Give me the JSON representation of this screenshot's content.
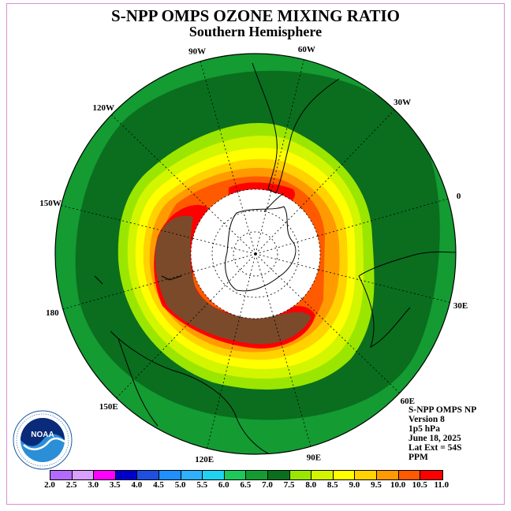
{
  "header": {
    "title": "S-NPP OMPS OZONE MIXING RATIO",
    "subtitle": "Southern Hemisphere"
  },
  "map": {
    "projection": "south-polar-stereographic",
    "longitude_labels": [
      "90W",
      "60W",
      "30W",
      "0",
      "30E",
      "60E",
      "90E",
      "120E",
      "150E",
      "180",
      "150W",
      "120W"
    ],
    "data_masked_near_pole": true
  },
  "info": {
    "line1": "S-NPP OMPS NP",
    "line2": "Version 8",
    "line3": "1p5 hPa",
    "line4": "June 18, 2025",
    "line5": "Lat Ext = 54S",
    "line6": "PPM"
  },
  "logo": {
    "text": "NOAA",
    "icon": "noaa-logo-icon"
  },
  "colorbar": {
    "ticks": [
      "2.0",
      "2.5",
      "3.0",
      "3.5",
      "4.0",
      "4.5",
      "5.0",
      "5.5",
      "6.0",
      "6.5",
      "7.0",
      "7.5",
      "8.0",
      "8.5",
      "9.0",
      "9.5",
      "10.0",
      "10.5",
      "11.0"
    ],
    "colors": [
      "#b36bff",
      "#d9a0ff",
      "#ff00ff",
      "#0000cc",
      "#1e4fe0",
      "#1e90ff",
      "#2fb0ff",
      "#1ed2f0",
      "#1ec85a",
      "#149b32",
      "#0a6e1e",
      "#9be600",
      "#d2f500",
      "#ffff00",
      "#ffd200",
      "#ff9b00",
      "#ff5a00",
      "#ff0000",
      "#7a4a2a"
    ]
  }
}
